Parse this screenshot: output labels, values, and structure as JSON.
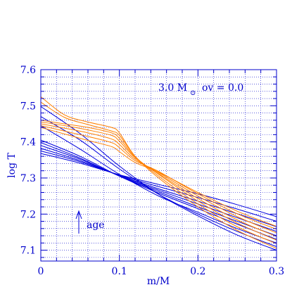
{
  "chart_data": {
    "type": "line",
    "xlabel": "m/M",
    "ylabel": "log T",
    "xlim": [
      0,
      0.3
    ],
    "ylim": [
      7.07,
      7.6
    ],
    "xticks": [
      0,
      0.1,
      0.2,
      0.3
    ],
    "xtick_labels": [
      "0",
      "0.1",
      "0.2",
      "0.3"
    ],
    "yticks": [
      7.1,
      7.2,
      7.3,
      7.4,
      7.5,
      7.6
    ],
    "ytick_labels": [
      "7.1",
      "7.2",
      "7.3",
      "7.4",
      "7.5",
      "7.6"
    ],
    "xminor_step": 0.02,
    "yminor_step": 0.02,
    "grid": true,
    "annotations": {
      "model": {
        "mass": "3.0 M",
        "sun_symbol": "⊙",
        "overshoot": "ov = 0.0"
      },
      "age": {
        "label": "age"
      }
    },
    "colors": {
      "axis": "#0000cc",
      "grid": "#0000cc",
      "blue_series": "#0000dd",
      "orange_series": "#ff8000"
    },
    "series": [
      {
        "color": "blue",
        "x": [
          0,
          0.05,
          0.1,
          0.15,
          0.2,
          0.25,
          0.3
        ],
        "y": [
          7.498,
          7.423,
          7.333,
          7.255,
          7.195,
          7.142,
          7.1
        ]
      },
      {
        "color": "blue",
        "x": [
          0,
          0.05,
          0.1,
          0.15,
          0.2,
          0.25,
          0.3
        ],
        "y": [
          7.47,
          7.405,
          7.325,
          7.255,
          7.2,
          7.152,
          7.11
        ]
      },
      {
        "color": "blue",
        "x": [
          0,
          0.05,
          0.1,
          0.15,
          0.2,
          0.25,
          0.3
        ],
        "y": [
          7.445,
          7.38,
          7.31,
          7.25,
          7.205,
          7.16,
          7.12
        ]
      },
      {
        "color": "blue",
        "x": [
          0,
          0.05,
          0.1,
          0.15,
          0.2,
          0.25,
          0.3
        ],
        "y": [
          7.405,
          7.36,
          7.305,
          7.258,
          7.215,
          7.172,
          7.13
        ]
      },
      {
        "color": "blue",
        "x": [
          0,
          0.05,
          0.1,
          0.15,
          0.2,
          0.25,
          0.3
        ],
        "y": [
          7.398,
          7.355,
          7.305,
          7.262,
          7.22,
          7.18,
          7.14
        ]
      },
      {
        "color": "blue",
        "x": [
          0,
          0.05,
          0.1,
          0.15,
          0.2,
          0.25,
          0.3
        ],
        "y": [
          7.39,
          7.352,
          7.306,
          7.266,
          7.228,
          7.19,
          7.152
        ]
      },
      {
        "color": "blue",
        "x": [
          0,
          0.05,
          0.1,
          0.15,
          0.2,
          0.25,
          0.3
        ],
        "y": [
          7.382,
          7.348,
          7.307,
          7.27,
          7.236,
          7.201,
          7.165
        ]
      },
      {
        "color": "blue",
        "x": [
          0,
          0.05,
          0.1,
          0.15,
          0.2,
          0.25,
          0.3
        ],
        "y": [
          7.375,
          7.345,
          7.308,
          7.276,
          7.246,
          7.214,
          7.18
        ]
      },
      {
        "color": "blue",
        "x": [
          0,
          0.05,
          0.1,
          0.15,
          0.2,
          0.25,
          0.3
        ],
        "y": [
          7.368,
          7.341,
          7.309,
          7.282,
          7.256,
          7.226,
          7.193
        ]
      },
      {
        "color": "orange",
        "x": [
          0,
          0.03,
          0.06,
          0.09,
          0.1,
          0.12,
          0.15,
          0.2,
          0.25,
          0.3
        ],
        "y": [
          7.525,
          7.475,
          7.455,
          7.44,
          7.425,
          7.36,
          7.3,
          7.22,
          7.155,
          7.105
        ]
      },
      {
        "color": "orange",
        "x": [
          0,
          0.03,
          0.06,
          0.09,
          0.1,
          0.12,
          0.15,
          0.2,
          0.25,
          0.3
        ],
        "y": [
          7.51,
          7.468,
          7.448,
          7.43,
          7.418,
          7.36,
          7.305,
          7.228,
          7.165,
          7.118
        ]
      },
      {
        "color": "orange",
        "x": [
          0,
          0.03,
          0.06,
          0.09,
          0.1,
          0.12,
          0.15,
          0.2,
          0.25,
          0.3
        ],
        "y": [
          7.46,
          7.45,
          7.44,
          7.425,
          7.41,
          7.358,
          7.31,
          7.236,
          7.175,
          7.128
        ]
      },
      {
        "color": "orange",
        "x": [
          0,
          0.03,
          0.06,
          0.09,
          0.1,
          0.12,
          0.15,
          0.2,
          0.25,
          0.3
        ],
        "y": [
          7.455,
          7.445,
          7.433,
          7.418,
          7.402,
          7.356,
          7.312,
          7.243,
          7.184,
          7.138
        ]
      },
      {
        "color": "orange",
        "x": [
          0,
          0.03,
          0.06,
          0.09,
          0.1,
          0.12,
          0.15,
          0.2,
          0.25,
          0.3
        ],
        "y": [
          7.45,
          7.438,
          7.425,
          7.408,
          7.393,
          7.352,
          7.315,
          7.25,
          7.193,
          7.148
        ]
      },
      {
        "color": "orange",
        "x": [
          0,
          0.03,
          0.06,
          0.09,
          0.1,
          0.12,
          0.15,
          0.2,
          0.25,
          0.3
        ],
        "y": [
          7.445,
          7.43,
          7.415,
          7.398,
          7.384,
          7.348,
          7.318,
          7.256,
          7.201,
          7.158
        ]
      },
      {
        "color": "orange",
        "x": [
          0,
          0.03,
          0.06,
          0.09,
          0.1,
          0.12,
          0.15,
          0.2,
          0.25,
          0.3
        ],
        "y": [
          7.44,
          7.422,
          7.404,
          7.387,
          7.373,
          7.343,
          7.316,
          7.26,
          7.208,
          7.166
        ]
      }
    ]
  }
}
